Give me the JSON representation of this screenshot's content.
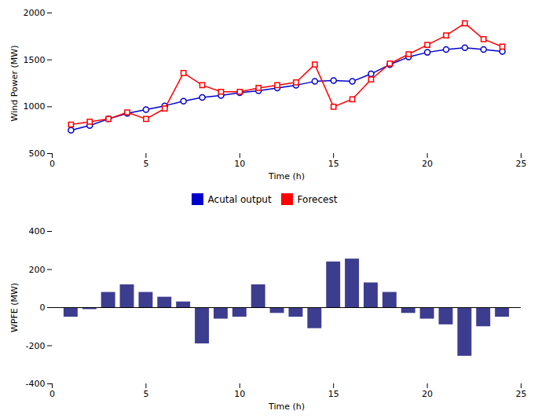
{
  "chart_data": [
    {
      "type": "line",
      "x": [
        1,
        2,
        3,
        4,
        5,
        6,
        7,
        8,
        9,
        10,
        11,
        12,
        13,
        14,
        15,
        16,
        17,
        18,
        19,
        20,
        21,
        22,
        23,
        24
      ],
      "series": [
        {
          "name": "Acutal output",
          "color": "#0000CD",
          "marker": "circle",
          "values": [
            750,
            800,
            870,
            930,
            970,
            1010,
            1060,
            1100,
            1120,
            1150,
            1170,
            1200,
            1230,
            1270,
            1280,
            1270,
            1350,
            1450,
            1530,
            1580,
            1610,
            1630,
            1610,
            1590
          ]
        },
        {
          "name": "Forecest",
          "color": "#FF0000",
          "marker": "square",
          "values": [
            810,
            840,
            870,
            940,
            870,
            980,
            1360,
            1230,
            1160,
            1160,
            1200,
            1230,
            1260,
            1450,
            1000,
            1080,
            1290,
            1460,
            1560,
            1660,
            1760,
            1890,
            1720,
            1640
          ]
        }
      ],
      "xlim": [
        0,
        25
      ],
      "xticks": [
        0,
        5,
        10,
        15,
        20,
        25
      ],
      "ylim": [
        500,
        2000
      ],
      "yticks": [
        500,
        1000,
        1500,
        2000
      ],
      "xlabel": "Time (h)",
      "ylabel": "Wind Power (MW)",
      "legend": "bottom"
    },
    {
      "type": "bar",
      "x": [
        1,
        2,
        3,
        4,
        5,
        6,
        7,
        8,
        9,
        10,
        11,
        12,
        13,
        14,
        15,
        16,
        17,
        18,
        19,
        20,
        21,
        22,
        23,
        24
      ],
      "values": [
        -50,
        -10,
        80,
        120,
        80,
        55,
        30,
        -190,
        -60,
        -50,
        120,
        -30,
        -50,
        -110,
        240,
        255,
        130,
        80,
        -30,
        -60,
        -90,
        -255,
        -100,
        -50
      ],
      "color": "#3D3D8F",
      "xlim": [
        0,
        25
      ],
      "xticks": [
        0,
        5,
        10,
        15,
        20,
        25
      ],
      "ylim": [
        -400,
        400
      ],
      "yticks": [
        -400,
        -200,
        0,
        200,
        400
      ],
      "xlabel": "Time (h)",
      "ylabel": "WPFE (MW)"
    }
  ]
}
